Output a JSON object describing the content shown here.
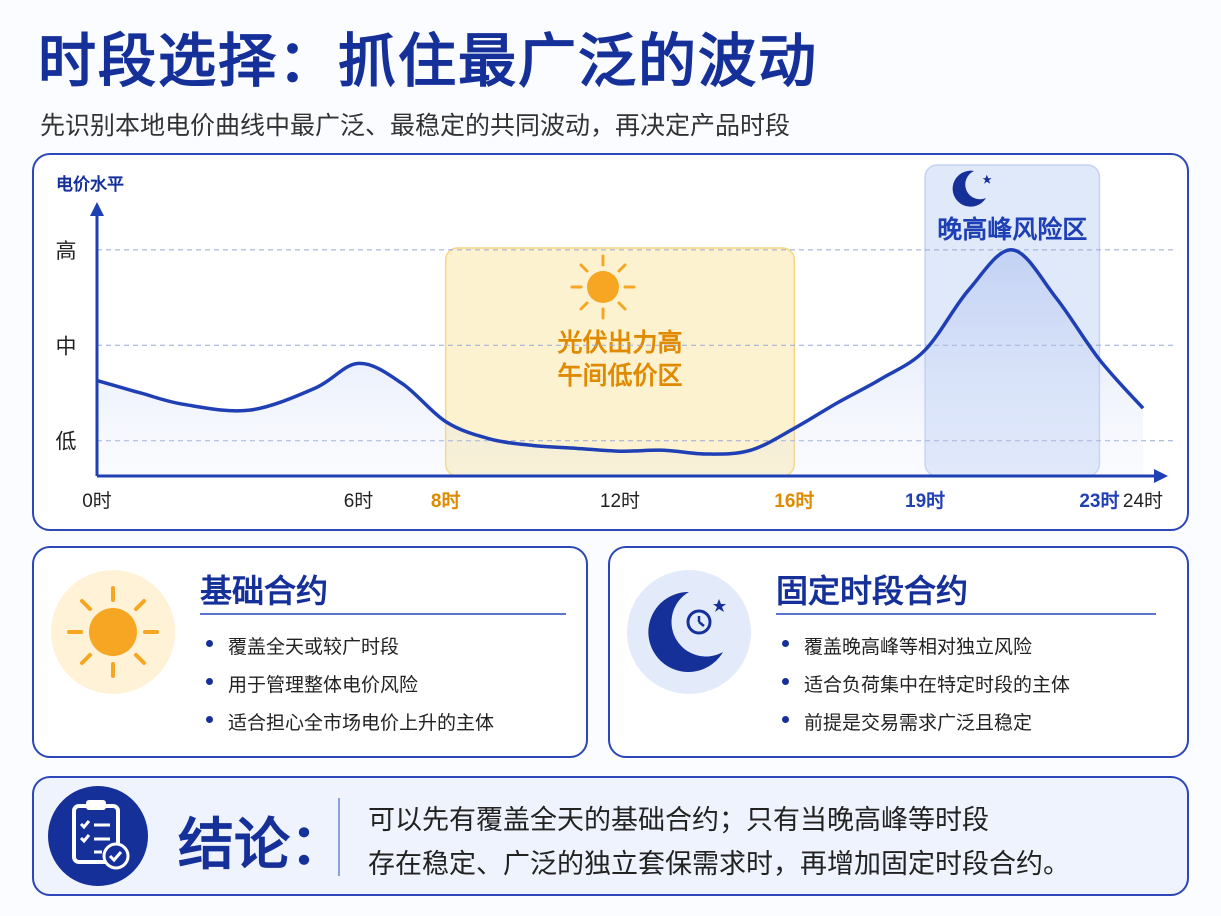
{
  "header": {
    "title": "时段选择：抓住最广泛的波动",
    "subtitle": "先识别本地电价曲线中最广泛、最稳定的共同波动，再决定产品时段"
  },
  "chart_data": {
    "type": "line",
    "y_label": "电价水平",
    "x": [
      0,
      1,
      2,
      3.5,
      5,
      6,
      7,
      8,
      9,
      10,
      11,
      12,
      13,
      14,
      15,
      16,
      17,
      18,
      19,
      20,
      21,
      22,
      23,
      24
    ],
    "values": [
      1.63,
      1.5,
      1.38,
      1.32,
      1.55,
      1.81,
      1.6,
      1.2,
      1.02,
      0.95,
      0.92,
      0.89,
      0.9,
      0.86,
      0.9,
      1.13,
      1.4,
      1.65,
      1.95,
      2.58,
      3.0,
      2.5,
      1.85,
      1.34
    ],
    "color": "#1f3fb5",
    "xlim": [
      0,
      24
    ],
    "xticks": [
      {
        "value": 0,
        "label": "0时"
      },
      {
        "value": 6,
        "label": "6时"
      },
      {
        "value": 8,
        "label": "8时"
      },
      {
        "value": 12,
        "label": "12时"
      },
      {
        "value": 16,
        "label": "16时"
      },
      {
        "value": 19,
        "label": "19时"
      },
      {
        "value": 23,
        "label": "23时"
      },
      {
        "value": 24,
        "label": "24时"
      }
    ],
    "ylim": [
      0.63,
      3.47
    ],
    "yticks": [
      {
        "value": 1,
        "label": "低"
      },
      {
        "value": 2,
        "label": "中"
      },
      {
        "value": 3,
        "label": "高"
      }
    ],
    "grid": true,
    "regions": [
      {
        "x": [
          8,
          16
        ],
        "lines": [
          "光伏出力高",
          "午间低价区"
        ],
        "color": "#e08a00"
      },
      {
        "x": [
          19,
          23
        ],
        "lines": [
          "晚高峰风险区"
        ],
        "color": "#1f3fb5"
      }
    ]
  },
  "cards": [
    {
      "title": "基础合约",
      "items": [
        "覆盖全天或较广时段",
        "用于管理整体电价风险",
        "适合担心全市场电价上升的主体"
      ]
    },
    {
      "title": "固定时段合约",
      "items": [
        "覆盖晚高峰等相对独立风险",
        "适合负荷集中在特定时段的主体",
        "前提是交易需求广泛且稳定"
      ]
    }
  ],
  "conclusion": {
    "label": "结论：",
    "lines": [
      "可以先有覆盖全天的基础合约；只有当晚高峰等时段",
      "存在稳定、广泛的独立套保需求时，再增加固定时段合约。"
    ]
  }
}
